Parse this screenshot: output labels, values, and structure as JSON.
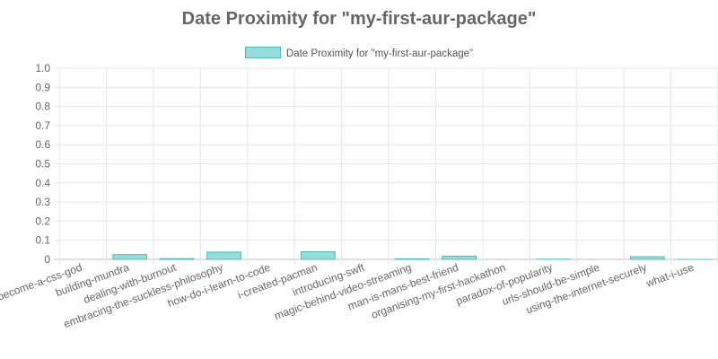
{
  "chart_data": {
    "type": "bar",
    "title": "Date Proximity for \"my-first-aur-package\"",
    "legend_position": "top",
    "grid": true,
    "series": [
      {
        "name": "Date Proximity for \"my-first-aur-package\"",
        "color": "#4fb8b8",
        "fill": "#97dddc",
        "values": [
          0,
          0.025,
          0.004,
          0.038,
          0,
          0.04,
          0,
          0.003,
          0.017,
          0,
          0.002,
          0,
          0.014,
          0.001
        ]
      }
    ],
    "categories": [
      "become-a-css-god",
      "building-mundra",
      "dealing-with-burnout",
      "embracing-the-suckless-philosophy",
      "how-do-i-learn-to-code",
      "i-created-pacman",
      "introducing-swft",
      "magic-behind-video-streaming",
      "man-is-mans-best-friend",
      "organising-my-first-hackathon",
      "paradox-of-popularity",
      "urls-should-be-simple",
      "using-the-internet-securely",
      "what-i-use"
    ],
    "ylim": [
      0,
      1
    ],
    "y_ticks": [
      "0",
      "0.1",
      "0.2",
      "0.3",
      "0.4",
      "0.5",
      "0.6",
      "0.7",
      "0.8",
      "0.9",
      "1.0"
    ],
    "xlabel": "",
    "ylabel": ""
  }
}
